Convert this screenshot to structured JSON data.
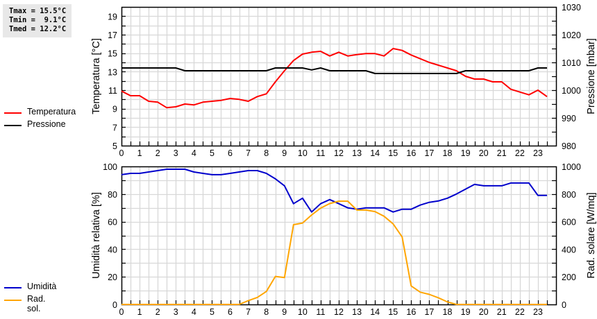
{
  "stats": {
    "lines": [
      "Tmax = 15.5°C",
      "Tmin =  9.1°C",
      "Tmed = 12.2°C"
    ]
  },
  "legend_top": [
    {
      "label": "Temperatura",
      "color": "#ff0000"
    },
    {
      "label": "Pressione",
      "color": "#000000"
    }
  ],
  "legend_bottom": [
    {
      "label": "Umidità",
      "color": "#0000cc"
    },
    {
      "label": "Rad. sol.",
      "color": "#ffa500"
    }
  ],
  "chart_data": [
    {
      "type": "line",
      "title": "",
      "xlabel": "",
      "x_ticks": [
        "0",
        "1",
        "2",
        "3",
        "4",
        "5",
        "6",
        "7",
        "8",
        "9",
        "10",
        "11",
        "12",
        "13",
        "14",
        "15",
        "16",
        "17",
        "18",
        "19",
        "20",
        "21",
        "22",
        "23"
      ],
      "xlim": [
        0,
        24
      ],
      "ylabel": "Temperatura [°C]",
      "ylim": [
        5,
        20
      ],
      "y_ticks": [
        5,
        7,
        9,
        11,
        13,
        15,
        17,
        19
      ],
      "y2label": "Pressione [mbar]",
      "y2lim": [
        980,
        1030
      ],
      "y2_ticks": [
        980,
        990,
        1000,
        1010,
        1020,
        1030
      ],
      "grid": true,
      "x": [
        0,
        0.5,
        1,
        1.5,
        2,
        2.5,
        3,
        3.5,
        4,
        4.5,
        5,
        5.5,
        6,
        6.5,
        7,
        7.5,
        8,
        8.5,
        9,
        9.5,
        10,
        10.5,
        11,
        11.5,
        12,
        12.5,
        13,
        13.5,
        14,
        14.5,
        15,
        15.5,
        16,
        16.5,
        17,
        17.5,
        18,
        18.5,
        19,
        19.5,
        20,
        20.5,
        21,
        21.5,
        22,
        22.5,
        23,
        23.5
      ],
      "series": [
        {
          "name": "Temperatura",
          "axis": "y",
          "color": "#ff0000",
          "values": [
            10.9,
            10.4,
            10.4,
            9.8,
            9.7,
            9.1,
            9.2,
            9.5,
            9.4,
            9.7,
            9.8,
            9.9,
            10.1,
            10.0,
            9.8,
            10.3,
            10.6,
            11.9,
            13.1,
            14.2,
            14.9,
            15.1,
            15.2,
            14.7,
            15.1,
            14.7,
            14.85,
            14.95,
            14.95,
            14.7,
            15.5,
            15.3,
            14.8,
            14.4,
            14.0,
            13.7,
            13.4,
            13.1,
            12.5,
            12.2,
            12.2,
            11.9,
            11.9,
            11.1,
            10.8,
            10.5,
            11.0,
            10.3
          ]
        },
        {
          "name": "Pressione",
          "axis": "y2",
          "color": "#000000",
          "values": [
            1008,
            1008,
            1008,
            1008,
            1008,
            1008,
            1008,
            1007,
            1007,
            1007,
            1007,
            1007,
            1007,
            1007,
            1007,
            1007,
            1007,
            1008,
            1008,
            1008,
            1008,
            1007.3,
            1008,
            1007,
            1007,
            1007,
            1007,
            1007,
            1006,
            1006,
            1006,
            1006,
            1006,
            1006,
            1006,
            1006,
            1006,
            1006,
            1007,
            1007,
            1007,
            1007,
            1007,
            1007,
            1007,
            1007,
            1008,
            1008
          ]
        }
      ]
    },
    {
      "type": "line",
      "title": "",
      "xlabel": "",
      "x_ticks": [
        "0",
        "1",
        "2",
        "3",
        "4",
        "5",
        "6",
        "7",
        "8",
        "9",
        "10",
        "11",
        "12",
        "13",
        "14",
        "15",
        "16",
        "17",
        "18",
        "19",
        "20",
        "21",
        "22",
        "23"
      ],
      "xlim": [
        0,
        24
      ],
      "ylabel": "Umidità relativa [%]",
      "ylim": [
        0,
        100
      ],
      "y_ticks": [
        0,
        20,
        40,
        60,
        80,
        100
      ],
      "y2label": "Rad. solare [W/mq]",
      "y2lim": [
        0,
        1000
      ],
      "y2_ticks": [
        0,
        200,
        400,
        600,
        800,
        1000
      ],
      "grid": true,
      "x": [
        0,
        0.5,
        1,
        1.5,
        2,
        2.5,
        3,
        3.5,
        4,
        4.5,
        5,
        5.5,
        6,
        6.5,
        7,
        7.5,
        8,
        8.5,
        9,
        9.5,
        10,
        10.5,
        11,
        11.5,
        12,
        12.5,
        13,
        13.5,
        14,
        14.5,
        15,
        15.5,
        16,
        16.5,
        17,
        17.5,
        18,
        18.5,
        19,
        19.5,
        20,
        20.5,
        21,
        21.5,
        22,
        22.5,
        23,
        23.5
      ],
      "series": [
        {
          "name": "Umidità",
          "axis": "y",
          "color": "#0000cc",
          "values": [
            94,
            95,
            95,
            96,
            97,
            98,
            98,
            98,
            96,
            95,
            94,
            94,
            95,
            96,
            97,
            97,
            95,
            91,
            86,
            73,
            77,
            67,
            73,
            76,
            73,
            70,
            69,
            70,
            70,
            70,
            67,
            69,
            69,
            72,
            74,
            75,
            77,
            80,
            83.5,
            87,
            86,
            86,
            86,
            88,
            88,
            88,
            79,
            79
          ]
        },
        {
          "name": "Rad. sol.",
          "axis": "y2",
          "color": "#ffa500",
          "values": [
            0,
            0,
            0,
            0,
            0,
            0,
            0,
            0,
            0,
            0,
            0,
            0,
            0,
            0,
            27,
            51,
            94,
            203,
            195,
            578,
            590,
            648,
            698,
            731,
            748,
            748,
            684,
            684,
            673,
            639,
            584,
            489,
            134,
            89,
            73,
            48,
            18,
            0,
            0,
            0,
            0,
            0,
            0,
            0,
            0,
            0,
            0,
            0
          ]
        }
      ]
    }
  ]
}
